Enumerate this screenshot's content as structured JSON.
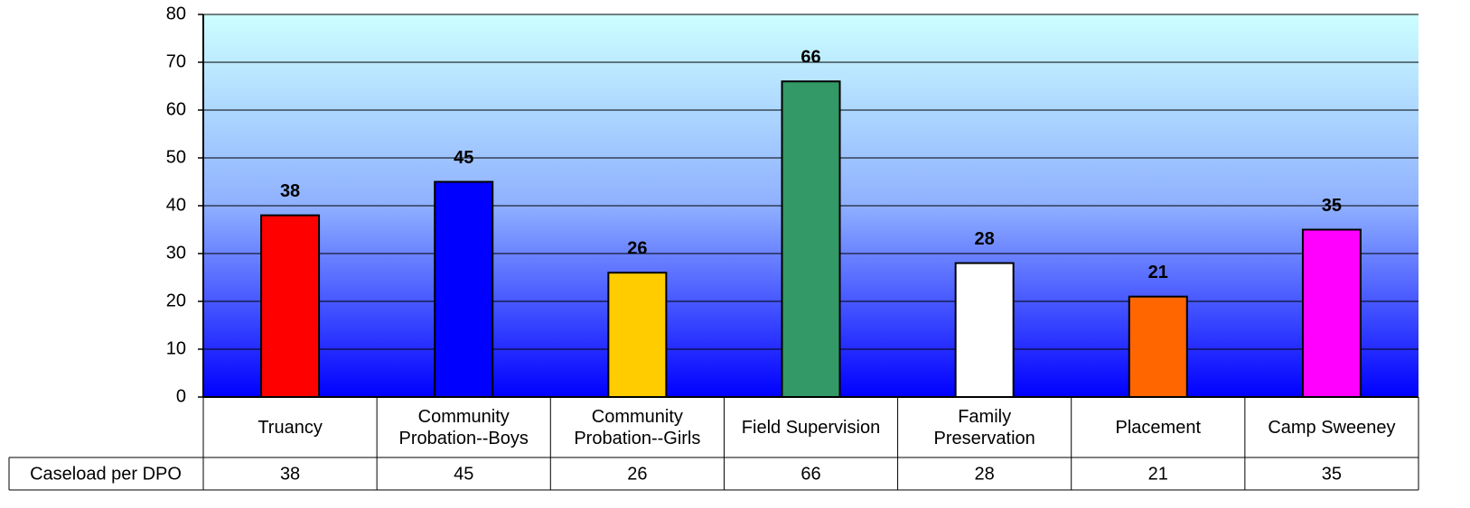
{
  "chart_data": {
    "type": "bar",
    "categories": [
      "Truancy",
      "Community Probation--Boys",
      "Community Probation--Girls",
      "Field Supervision",
      "Family Preservation",
      "Placement",
      "Camp Sweeney"
    ],
    "series": [
      {
        "name": "Caseload per DPO",
        "colors": [
          "#ff0000",
          "#0000ff",
          "#ffcc00",
          "#339966",
          "#ffffff",
          "#ff6600",
          "#ff00ff"
        ],
        "values": [
          38,
          45,
          26,
          66,
          28,
          21,
          35
        ]
      }
    ],
    "ylim": [
      0,
      80
    ],
    "yticks": [
      0,
      10,
      20,
      30,
      40,
      50,
      60,
      70,
      80
    ],
    "grid": true
  }
}
